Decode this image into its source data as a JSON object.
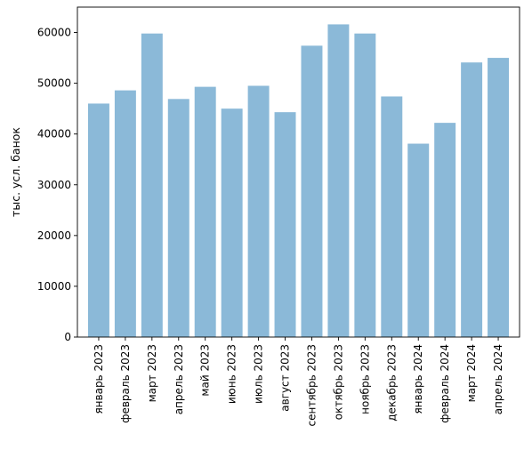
{
  "chart_data": {
    "type": "bar",
    "title": "",
    "xlabel": "",
    "ylabel": "тыс. усл. банок",
    "categories": [
      "январь 2023",
      "февраль 2023",
      "март 2023",
      "апрель 2023",
      "май 2023",
      "июнь 2023",
      "июль 2023",
      "август 2023",
      "сентябрь 2023",
      "октябрь 2023",
      "ноябрь 2023",
      "декабрь 2023",
      "январь 2024",
      "февраль 2024",
      "март 2024",
      "апрель 2024"
    ],
    "values": [
      46000,
      48600,
      59800,
      46900,
      49300,
      45000,
      49500,
      44300,
      57400,
      61600,
      59800,
      47400,
      38100,
      42200,
      54100,
      55000
    ],
    "ylim": [
      0,
      65000
    ],
    "yticks": [
      0,
      10000,
      20000,
      30000,
      40000,
      50000,
      60000
    ],
    "bar_color": "#8bb9d8",
    "grid": false,
    "legend": "none"
  }
}
